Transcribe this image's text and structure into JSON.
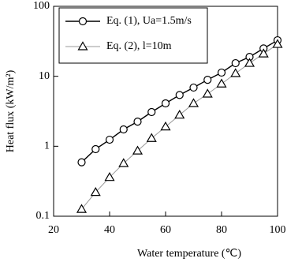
{
  "chart_data": {
    "type": "line",
    "xlabel": "Water temperature (℃)",
    "ylabel": "Heat flux (kW/m²)",
    "x": [
      30,
      35,
      40,
      45,
      50,
      55,
      60,
      65,
      70,
      75,
      80,
      85,
      90,
      95,
      100
    ],
    "series": [
      {
        "name": "Eq. (1), Ua=1.5m/s",
        "color": "#000000",
        "marker": "circle",
        "values": [
          0.59,
          0.91,
          1.24,
          1.74,
          2.25,
          3.08,
          4.1,
          5.4,
          6.9,
          8.9,
          11.3,
          15.4,
          18.9,
          25,
          32.7
        ]
      },
      {
        "name": "Eq. (2), l=10m",
        "color": "#999999",
        "marker": "triangle",
        "values": [
          0.126,
          0.22,
          0.36,
          0.57,
          0.86,
          1.3,
          1.9,
          2.8,
          4.1,
          5.6,
          7.8,
          11,
          15.4,
          21,
          28.7
        ]
      }
    ],
    "xlim": [
      20,
      100
    ],
    "xticks": [
      20,
      40,
      60,
      80,
      100
    ],
    "ylim": [
      0.1,
      100
    ],
    "yticks": [
      0.1,
      1,
      10,
      100
    ],
    "log_y": true,
    "legend": "upper-left"
  }
}
